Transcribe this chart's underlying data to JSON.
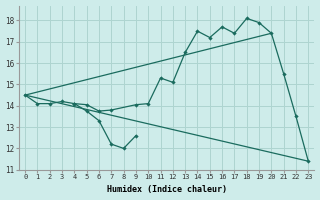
{
  "xlabel": "Humidex (Indice chaleur)",
  "bg_color": "#ceecea",
  "grid_color": "#aed4d0",
  "line_color": "#1a6b5e",
  "series1_x": [
    0,
    1,
    2,
    3,
    4,
    5,
    6,
    7,
    9,
    10,
    11,
    12,
    13,
    14,
    15,
    16,
    17,
    18,
    19,
    20,
    21,
    22,
    23
  ],
  "series1_y": [
    14.5,
    14.1,
    14.1,
    14.2,
    14.1,
    14.05,
    13.75,
    13.8,
    14.05,
    14.1,
    15.3,
    15.1,
    16.5,
    17.5,
    17.2,
    17.7,
    17.4,
    18.1,
    17.9,
    17.4,
    15.5,
    13.5,
    11.4
  ],
  "series2_x": [
    4,
    5,
    6,
    7,
    8,
    9
  ],
  "series2_y": [
    14.1,
    13.75,
    13.3,
    12.2,
    12.0,
    12.6
  ],
  "trend1_x": [
    0,
    20
  ],
  "trend1_y": [
    14.5,
    17.4
  ],
  "trend2_x": [
    0,
    23
  ],
  "trend2_y": [
    14.5,
    11.4
  ],
  "xlim": [
    -0.5,
    23.5
  ],
  "ylim": [
    11,
    18.7
  ],
  "yticks": [
    11,
    12,
    13,
    14,
    15,
    16,
    17,
    18
  ],
  "xticks": [
    0,
    1,
    2,
    3,
    4,
    5,
    6,
    7,
    8,
    9,
    10,
    11,
    12,
    13,
    14,
    15,
    16,
    17,
    18,
    19,
    20,
    21,
    22,
    23
  ]
}
